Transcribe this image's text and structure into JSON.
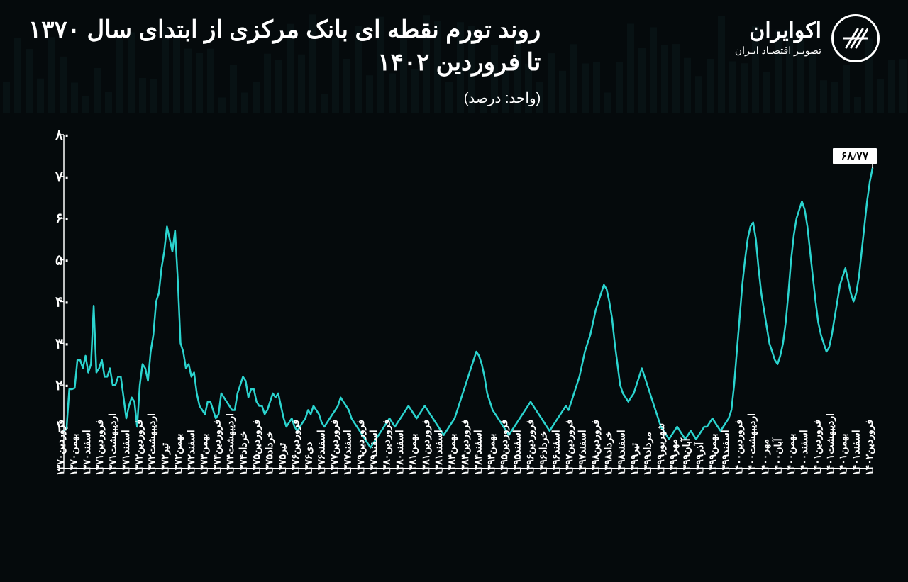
{
  "brand": {
    "name": "اکوایران",
    "sub": "تصویـر اقتصـاد ایـران"
  },
  "title_l1": "روند تورم نقطه ای بانک مرکزی از ابتدای سال ۱۳۷۰",
  "title_l2": "تا فروردین ۱۴۰۲",
  "unit": "(واحد: درصد)",
  "chart": {
    "type": "line",
    "bg": "#050a0c",
    "line_color": "#2bd4cf",
    "line_width": 2.5,
    "axis_color": "#ffffff",
    "callout_bg": "#ffffff",
    "callout_text": "۶۸/۷۷",
    "ylim": [
      0,
      80
    ],
    "ytick_step": 10,
    "ylabels": [
      "۰",
      "۱۰",
      "۲۰",
      "۳۰",
      "۴۰",
      "۵۰",
      "۶۰",
      "۷۰",
      "۸۰"
    ],
    "y_fontsize": 20,
    "x_fontsize": 14,
    "xlabels": [
      "فروردین۱۳۷۰",
      "بهمن۱۳۷۰",
      "اسفند۱۳۷۰",
      "فروردین۱۳۷۱",
      "اردیبهشت۱۳۷۱",
      "اسفند۱۳۷۱",
      "فروردین۱۳۷۲",
      "اردیبهشت۱۳۷۲",
      "تیر۱۳۷۲",
      "بهمن۱۳۷۲",
      "اسفند۱۳۷۲",
      "بهمن۱۳۷۳",
      "فروردین۱۳۷۴",
      "اردیبهشت۱۳۷۴",
      "خرداد۱۳۷۴",
      "فروردین۱۳۷۵",
      "خرداد۱۳۷۵",
      "تیر۱۳۷۵",
      "فروردین۱۳۷۶",
      "دی۱۳۷۶",
      "اسفند۱۳۷۶",
      "فروردین۱۳۷۷",
      "اسفند۱۳۷۷",
      "فروردین۱۳۷۹",
      "اسفند۱۳۷۹",
      "فروردین۱۳۸۰",
      "اسفند۱۳۸۰",
      "بهمن۱۳۸۱",
      "فروردین۱۳۸۱",
      "اسفند۱۳۸۱",
      "بهمن۱۳۸۴",
      "فروردین۱۳۸۴",
      "اسفند۱۳۸۴",
      "بهمن۱۳۹۴",
      "فروردین۱۳۹۵",
      "اسفند۱۳۹۵",
      "فروردین۱۳۹۶",
      "خرداد۱۳۹۶",
      "اسفند۱۳۹۶",
      "فروردین۱۳۹۷",
      "اسفند۱۳۹۷",
      "فروردین۱۳۹۸",
      "خرداد۱۳۹۸",
      "اسفند۱۳۹۸",
      "تیر۱۳۹۹",
      "مرداد۱۳۹۹",
      "شهریور۱۳۹۹",
      "مهر۱۳۹۹",
      "آبان۱۳۹۹",
      "آذر۱۳۹۹",
      "بهمن۱۳۹۹",
      "اسفند۱۳۹۹",
      "فروردین۱۴۰۰",
      "اردیبهشت۱۴۰۰",
      "مهر۱۴۰۰",
      "آبان۱۴۰۰",
      "بهمن۱۴۰۰",
      "اسفند۱۴۰۰",
      "فروردین۱۴۰۱",
      "اردیبهشت۱۴۰۱",
      "بهمن۱۴۰۱",
      "اسفند۱۴۰۱",
      "فروردین۱۴۰۲"
    ],
    "values": [
      9,
      9.5,
      19,
      19,
      19.3,
      26,
      26,
      24,
      27,
      23,
      25,
      39,
      23,
      24,
      26,
      22,
      22,
      24,
      20,
      20,
      22,
      22,
      17,
      12,
      15,
      17,
      16,
      10,
      20,
      25,
      24,
      21,
      28,
      32,
      40,
      42,
      48,
      52,
      58,
      55,
      52,
      57,
      45,
      30,
      28,
      24,
      25,
      22,
      23,
      18,
      15,
      14,
      13,
      16,
      16,
      14,
      12,
      13,
      18,
      17,
      16,
      15,
      14,
      14,
      18,
      20,
      22,
      21,
      17,
      19,
      19,
      16,
      15,
      15,
      13,
      14,
      16,
      18,
      17,
      18,
      15,
      12,
      10,
      11,
      12,
      10,
      9,
      10,
      11,
      12,
      14,
      13,
      15,
      14,
      13,
      11,
      10,
      11,
      12,
      13,
      14,
      15,
      17,
      16,
      15,
      14,
      12,
      11,
      10,
      9,
      8,
      7,
      6,
      5,
      6,
      7,
      8,
      9,
      10,
      11,
      12,
      11,
      10,
      11,
      12,
      13,
      14,
      15,
      14,
      13,
      12,
      13,
      14,
      15,
      14,
      13,
      12,
      11,
      10,
      9,
      8,
      9,
      10,
      11,
      12,
      14,
      16,
      18,
      20,
      22,
      24,
      26,
      28,
      27,
      25,
      22,
      18,
      16,
      14,
      13,
      12,
      11,
      10,
      9,
      8,
      9,
      10,
      11,
      12,
      13,
      14,
      15,
      16,
      15,
      14,
      13,
      12,
      11,
      10,
      9,
      10,
      11,
      12,
      13,
      14,
      15,
      14,
      16,
      18,
      20,
      22,
      25,
      28,
      30,
      32,
      35,
      38,
      40,
      42,
      44,
      43,
      40,
      36,
      30,
      25,
      20,
      18,
      17,
      16,
      17,
      18,
      20,
      22,
      24,
      22,
      20,
      18,
      16,
      14,
      12,
      10,
      9,
      8,
      7,
      8,
      9,
      10,
      9,
      8,
      7,
      8,
      9,
      8,
      7,
      8,
      9,
      10,
      10,
      11,
      12,
      11,
      10,
      9,
      10,
      11,
      12,
      14,
      20,
      28,
      36,
      44,
      50,
      55,
      58,
      59,
      55,
      48,
      42,
      38,
      34,
      30,
      28,
      26,
      25,
      27,
      30,
      35,
      42,
      50,
      56,
      60,
      62,
      64,
      62,
      58,
      52,
      46,
      40,
      35,
      32,
      30,
      28,
      29,
      32,
      36,
      40,
      44,
      46,
      48,
      45,
      42,
      40,
      42,
      46,
      52,
      58,
      64,
      68.77,
      72
    ]
  }
}
